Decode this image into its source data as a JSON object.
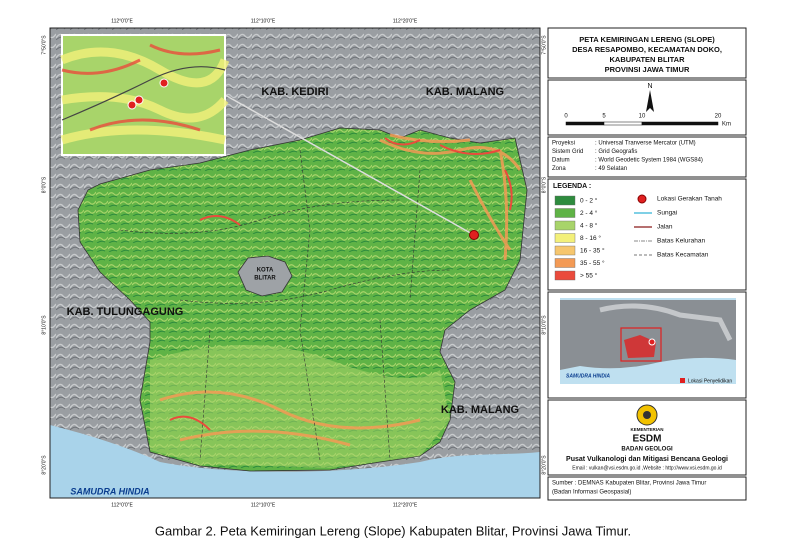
{
  "map": {
    "labels": [
      "KAB. KEDIRI",
      "KAB. MALANG",
      "KAB. TULUNGAGUNG",
      "KOTA",
      "BLITAR",
      "KAB. MALANG",
      "SAMUDRA HINDIA"
    ],
    "coords_top": [
      "112°0'0\"E",
      "112°10'0\"E",
      "112°20'0\"E"
    ],
    "coords_left": [
      "7°50'0\"S",
      "8°0'0\"S",
      "8°10'0\"S",
      "8°20'0\"S"
    ]
  },
  "title": [
    "PETA KEMIRINGAN LERENG (SLOPE)",
    "DESA RESAPOMBO, KECAMATAN DOKO,",
    "KABUPATEN BLITAR",
    "PROVINSI JAWA TIMUR"
  ],
  "north": "N",
  "scale": {
    "ticks": [
      0,
      5,
      10,
      20
    ],
    "unit": "Km"
  },
  "projection": [
    {
      "key": "Proyeksi",
      "value": ": Universal Tranverse Mercator (UTM)"
    },
    {
      "key": "Sistem Grid",
      "value": ": Grid Geografis"
    },
    {
      "key": "Datum",
      "value": ": World Geodetic System 1984 (WGS84)"
    },
    {
      "key": "Zona",
      "value": ": 49 Selatan"
    }
  ],
  "legend": {
    "title": "LEGENDA :",
    "classes": [
      {
        "label": "0 - 2 °",
        "color": "#2e8b3e"
      },
      {
        "label": "2 - 4 °",
        "color": "#5fb346"
      },
      {
        "label": "4 - 8 °",
        "color": "#a8d46a"
      },
      {
        "label": "8 - 16 °",
        "color": "#f3f07a"
      },
      {
        "label": "16 - 35 °",
        "color": "#f6c66e"
      },
      {
        "label": "35 - 55 °",
        "color": "#f39a55"
      },
      {
        "label": "> 55 °",
        "color": "#ea4b3c"
      }
    ],
    "symbols": [
      "Lokasi Gerakan Tanah",
      "Sungai",
      "Jalan",
      "Batas Kelurahan",
      "Batas Kecamatan"
    ]
  },
  "locator": {
    "sea": "SAMUDRA HINDIA",
    "legend": "Lokasi Penyelidikan"
  },
  "agency": {
    "ministry": "KEMENTERIAN",
    "name": "ESDM",
    "office": "BADAN GEOLOGI",
    "center": "Pusat Vulkanologi dan Mitigasi Bencana Geologi",
    "contact": "Email : vulkan@vsi.esdm.go.id ,Website : http://www.vsi.esdm.go.id"
  },
  "source": [
    "Sumber : DEMNAS Kabupaten Blitar, Provinsi Jawa Timur",
    "(Badan Informasi Geospasial)"
  ],
  "caption": "Gambar 2. Peta Kemiringan Lereng (Slope) Kabupaten Blitar, Provinsi Jawa Timur."
}
